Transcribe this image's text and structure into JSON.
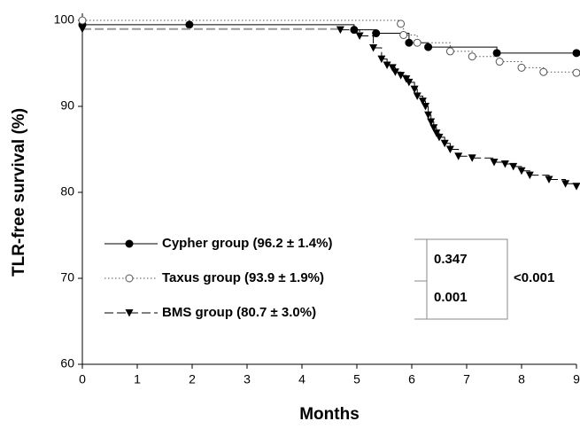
{
  "chart_data": {
    "type": "step",
    "xlabel": "Months",
    "ylabel": "TLR-free survival (%)",
    "xlim": [
      0,
      9
    ],
    "ylim": [
      60,
      100
    ],
    "xticks": [
      0,
      1,
      2,
      3,
      4,
      5,
      6,
      7,
      8,
      9
    ],
    "yticks": [
      60,
      70,
      80,
      90,
      100
    ],
    "series": [
      {
        "name": "Cypher group (96.2 ± 1.4%)",
        "color": "#000000",
        "line_style": "solid",
        "marker": "filled-circle",
        "x": [
          0,
          1.95,
          4.95,
          5.35,
          5.95,
          6.3,
          7.55,
          9
        ],
        "values": [
          99.5,
          99.5,
          98.9,
          98.5,
          97.4,
          96.9,
          96.2,
          96.2
        ]
      },
      {
        "name": "Taxus group (93.9 ± 1.9%)",
        "color": "#555555",
        "line_style": "dotted",
        "marker": "open-circle",
        "x": [
          0,
          5.8,
          5.85,
          6.1,
          6.7,
          7.1,
          7.6,
          8.0,
          8.4,
          9
        ],
        "values": [
          100,
          99.6,
          98.3,
          97.4,
          96.4,
          95.8,
          95.2,
          94.5,
          94.0,
          93.9
        ]
      },
      {
        "name": "BMS group (80.7 ± 3.0%)",
        "color": "#000000",
        "line_style": "dashed",
        "marker": "triangle-down",
        "x": [
          0,
          4.7,
          5.05,
          5.3,
          5.45,
          5.55,
          5.65,
          5.7,
          5.8,
          5.9,
          5.95,
          6.05,
          6.1,
          6.2,
          6.25,
          6.3,
          6.35,
          6.4,
          6.45,
          6.5,
          6.6,
          6.7,
          6.85,
          7.1,
          7.5,
          7.7,
          7.85,
          8.0,
          8.15,
          8.5,
          8.8,
          9
        ],
        "values": [
          99,
          98.9,
          98.2,
          96.8,
          95.5,
          94.8,
          94.5,
          94.0,
          93.6,
          93.2,
          92.8,
          92.0,
          91.2,
          90.6,
          90.0,
          89.0,
          88.2,
          87.5,
          86.9,
          86.4,
          85.7,
          85.0,
          84.2,
          84.0,
          83.5,
          83.3,
          83.0,
          82.5,
          82.0,
          81.5,
          81.0,
          80.7
        ]
      }
    ],
    "p_values": [
      "0.347",
      "0.001",
      "<0.001"
    ]
  }
}
